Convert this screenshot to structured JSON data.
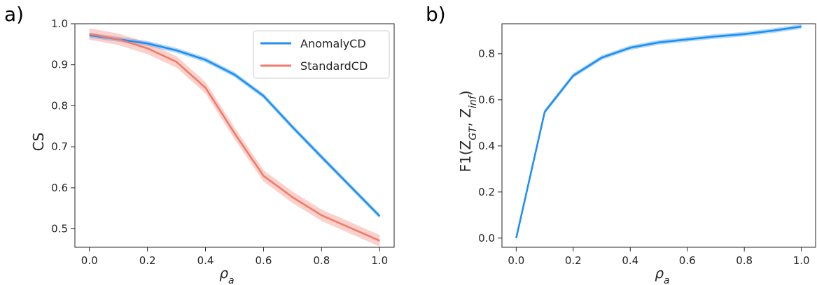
{
  "colors": {
    "anomaly": "#1f8ff0",
    "standard": "#f27a6a",
    "axis": "#262626"
  },
  "chart_data": [
    {
      "panel_label": "a)",
      "type": "line",
      "xlabel": "ρ",
      "xlabel_sub": "a",
      "ylabel": "CS",
      "xlim": [
        -0.05,
        1.05
      ],
      "ylim": [
        0.455,
        1.0
      ],
      "xticks": [
        0.0,
        0.2,
        0.4,
        0.6,
        0.8,
        1.0
      ],
      "xtick_labels": [
        "0.0",
        "0.2",
        "0.4",
        "0.6",
        "0.8",
        "1.0"
      ],
      "yticks": [
        0.5,
        0.6,
        0.7,
        0.8,
        0.9,
        1.0
      ],
      "ytick_labels": [
        "0.5",
        "0.6",
        "0.7",
        "0.8",
        "0.9",
        "1.0"
      ],
      "legend": "top-right",
      "grid": false,
      "x": [
        0.0,
        0.1,
        0.2,
        0.3,
        0.4,
        0.5,
        0.6,
        0.7,
        0.8,
        0.9,
        1.0
      ],
      "series": [
        {
          "name": "AnomalyCD",
          "color": "#1f8ff0",
          "values": [
            0.972,
            0.962,
            0.952,
            0.935,
            0.912,
            0.876,
            0.824,
            0.748,
            0.675,
            0.603,
            0.531
          ],
          "band": 0.006
        },
        {
          "name": "StandardCD",
          "color": "#f27a6a",
          "values": [
            0.975,
            0.962,
            0.94,
            0.907,
            0.844,
            0.733,
            0.629,
            0.577,
            0.533,
            0.502,
            0.471
          ],
          "band": 0.014
        }
      ]
    },
    {
      "panel_label": "b)",
      "type": "line",
      "xlabel": "ρ",
      "xlabel_sub": "a",
      "ylabel": "F1(Z",
      "ylabel_sub1": "GT",
      "ylabel_mid": ", Z",
      "ylabel_sub2": "inf",
      "ylabel_end": ")",
      "xlim": [
        -0.05,
        1.05
      ],
      "ylim": [
        -0.04,
        0.93
      ],
      "xticks": [
        0.0,
        0.2,
        0.4,
        0.6,
        0.8,
        1.0
      ],
      "xtick_labels": [
        "0.0",
        "0.2",
        "0.4",
        "0.6",
        "0.8",
        "1.0"
      ],
      "yticks": [
        0.0,
        0.2,
        0.4,
        0.6,
        0.8
      ],
      "ytick_labels": [
        "0.0",
        "0.2",
        "0.4",
        "0.6",
        "0.8"
      ],
      "grid": false,
      "x": [
        0.0,
        0.1,
        0.2,
        0.3,
        0.4,
        0.5,
        0.6,
        0.7,
        0.8,
        0.9,
        1.0
      ],
      "series": [
        {
          "color": "#1f8ff0",
          "values": [
            0.0,
            0.548,
            0.705,
            0.783,
            0.826,
            0.849,
            0.862,
            0.875,
            0.885,
            0.9,
            0.918
          ],
          "band": 0.01
        }
      ]
    }
  ]
}
